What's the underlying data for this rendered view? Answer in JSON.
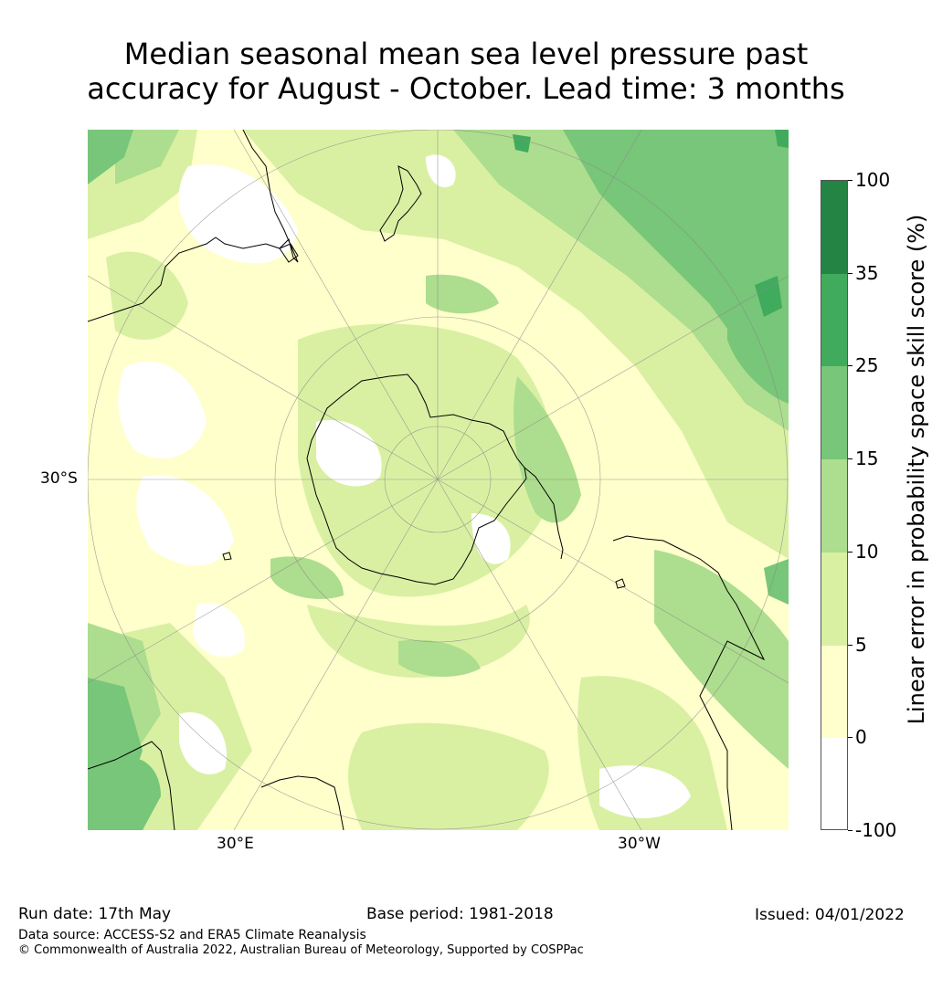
{
  "title": {
    "line1": "Median seasonal mean sea level pressure past",
    "line2": "accuracy for August - October. Lead time: 3 months"
  },
  "map": {
    "projection": "south-polar-stereographic",
    "lat_label": "30°S",
    "lon_labels": [
      "30°E",
      "30°W"
    ],
    "regions": [
      "Antarctica",
      "Australia",
      "New Zealand",
      "South America",
      "Southern Africa"
    ]
  },
  "colorbar": {
    "title": "Linear error in probability space skill score (%)",
    "ticks": [
      "100",
      "35",
      "25",
      "15",
      "10",
      "5",
      "0",
      "-100"
    ],
    "bins": [
      {
        "from": "-100",
        "to": "0",
        "color": "#ffffff"
      },
      {
        "from": "0",
        "to": "5",
        "color": "#ffffcc"
      },
      {
        "from": "5",
        "to": "10",
        "color": "#d9f0a3"
      },
      {
        "from": "10",
        "to": "15",
        "color": "#addd8e"
      },
      {
        "from": "15",
        "to": "25",
        "color": "#78c679"
      },
      {
        "from": "25",
        "to": "35",
        "color": "#41ab5d"
      },
      {
        "from": "35",
        "to": "100",
        "color": "#238443"
      }
    ]
  },
  "footer": {
    "run_date": "Run date: 17th May",
    "base_period": "Base period: 1981-2018",
    "issued": "Issued: 04/01/2022",
    "data_source": "Data source: ACCESS-S2 and ERA5 Climate Reanalysis",
    "copyright": "© Commonwealth of Australia 2022, Australian Bureau of Meteorology, Supported by COSPPac"
  }
}
